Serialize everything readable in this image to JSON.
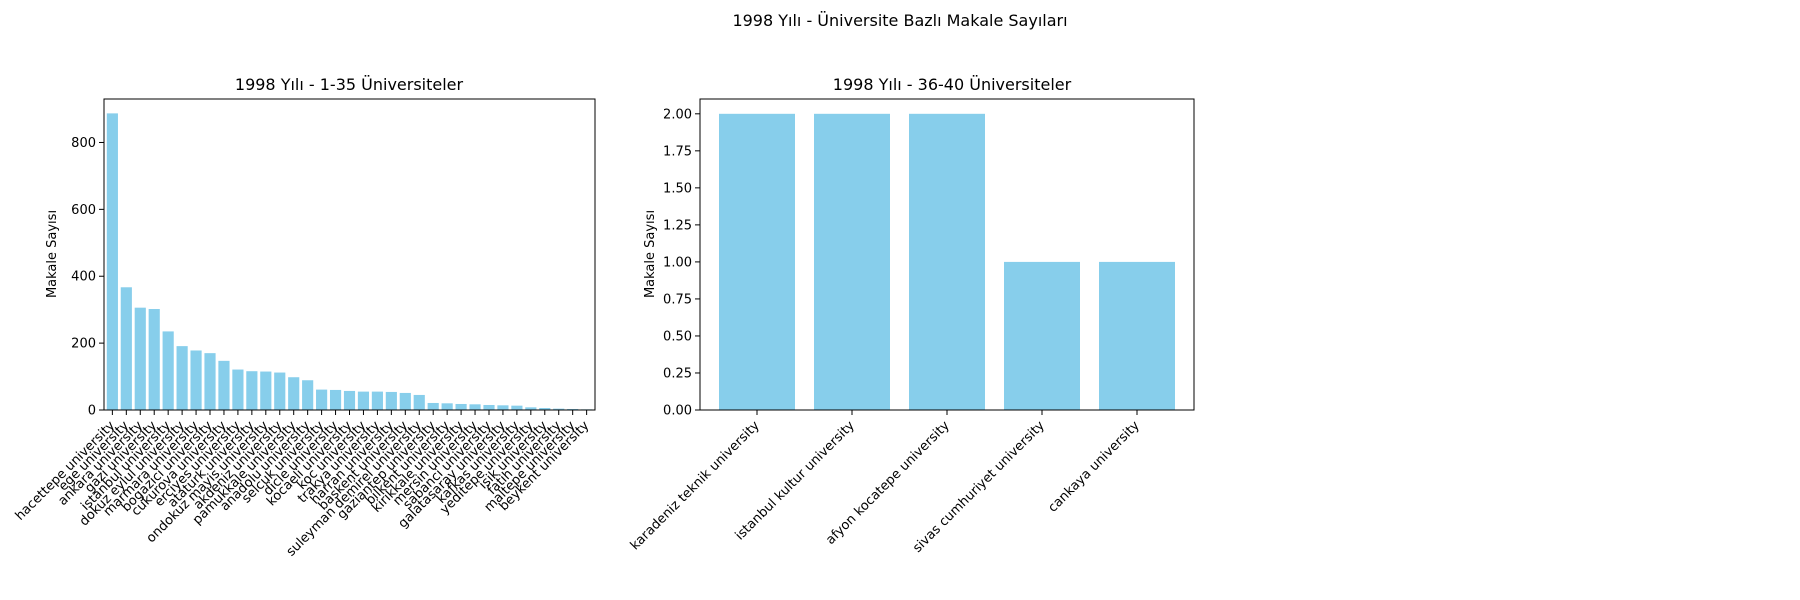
{
  "figure": {
    "suptitle": "1998 Yılı - Üniversite Bazlı Makale Sayıları"
  },
  "colors": {
    "bar": "#87ceeb",
    "axis": "#000000"
  },
  "chart_data": [
    {
      "type": "bar",
      "title": "1998 Yılı - 1-35 Üniversiteler",
      "xlabel": "",
      "ylabel": "Makale Sayısı",
      "ylim": [
        0,
        930
      ],
      "yticks": [
        0,
        200,
        400,
        600,
        800
      ],
      "ytick_labels": [
        "0",
        "200",
        "400",
        "600",
        "800"
      ],
      "categories": [
        "hacettepe university",
        "ege university",
        "ankara university",
        "gazi university",
        "istanbul university",
        "dokuz eylul university",
        "marmara university",
        "bogazici university",
        "cukurova university",
        "erciyes university",
        "ataturk university",
        "ondokuz mayis university",
        "akdeniz university",
        "pamukkale university",
        "anadolu university",
        "selcuk university",
        "dicle university",
        "kocaeli university",
        "koc university",
        "trakya university",
        "harran university",
        "baskent university",
        "suleyman demirel university",
        "gaziantep university",
        "bilkent university",
        "kirikkale university",
        "mersin university",
        "sabanci university",
        "galatasaray university",
        "kafkas university",
        "yeditepe university",
        "isik university",
        "fatih university",
        "maltepe university",
        "beykent university"
      ],
      "values": [
        887,
        367,
        306,
        302,
        235,
        191,
        178,
        170,
        147,
        121,
        116,
        115,
        112,
        98,
        89,
        61,
        60,
        57,
        55,
        55,
        54,
        51,
        45,
        21,
        20,
        18,
        17,
        15,
        14,
        13,
        8,
        6,
        4,
        3,
        2
      ]
    },
    {
      "type": "bar",
      "title": "1998 Yılı - 36-40 Üniversiteler",
      "xlabel": "",
      "ylabel": "Makale Sayısı",
      "ylim": [
        0,
        2.1
      ],
      "yticks": [
        0,
        0.25,
        0.5,
        0.75,
        1.0,
        1.25,
        1.5,
        1.75,
        2.0
      ],
      "ytick_labels": [
        "0.00",
        "0.25",
        "0.50",
        "0.75",
        "1.00",
        "1.25",
        "1.50",
        "1.75",
        "2.00"
      ],
      "categories": [
        "karadeniz teknik university",
        "istanbul kultur university",
        "afyon kocatepe university",
        "sivas cumhuriyet university",
        "cankaya university"
      ],
      "values": [
        2,
        2,
        2,
        1,
        1
      ]
    }
  ]
}
